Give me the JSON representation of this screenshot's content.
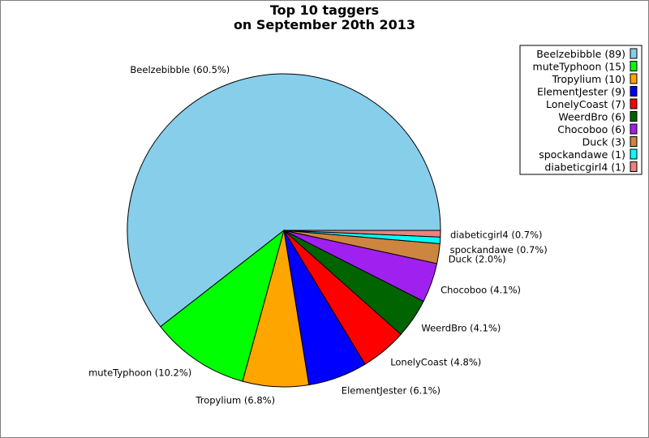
{
  "chart_data": {
    "type": "pie",
    "title": "Top 10 taggers",
    "subtitle": "on September 20th 2013",
    "slices": [
      {
        "name": "Beelzebibble",
        "count": 89,
        "percent": 60.5,
        "color": "#87ceeb",
        "label": "Beelzebibble (60.5%)",
        "legend": "Beelzebibble (89)"
      },
      {
        "name": "muteTyphoon",
        "count": 15,
        "percent": 10.2,
        "color": "#00ff00",
        "label": "muteTyphoon (10.2%)",
        "legend": "muteTyphoon (15)"
      },
      {
        "name": "Tropylium",
        "count": 10,
        "percent": 6.8,
        "color": "#ffa500",
        "label": "Tropylium (6.8%)",
        "legend": "Tropylium (10)"
      },
      {
        "name": "ElementJester",
        "count": 9,
        "percent": 6.1,
        "color": "#0000ff",
        "label": "ElementJester (6.1%)",
        "legend": "ElementJester (9)"
      },
      {
        "name": "LonelyCoast",
        "count": 7,
        "percent": 4.8,
        "color": "#ff0000",
        "label": "LonelyCoast (4.8%)",
        "legend": "LonelyCoast (7)"
      },
      {
        "name": "WeerdBro",
        "count": 6,
        "percent": 4.1,
        "color": "#006400",
        "label": "WeerdBro (4.1%)",
        "legend": "WeerdBro (6)"
      },
      {
        "name": "Chocoboo",
        "count": 6,
        "percent": 4.1,
        "color": "#a020f0",
        "label": "Chocoboo (4.1%)",
        "legend": "Chocoboo (6)"
      },
      {
        "name": "Duck",
        "count": 3,
        "percent": 2.0,
        "color": "#cd853f",
        "label": "Duck (2.0%)",
        "legend": "Duck (3)"
      },
      {
        "name": "spockandawe",
        "count": 1,
        "percent": 0.7,
        "color": "#00ffff",
        "label": "spockandawe (0.7%)",
        "legend": "spockandawe (1)"
      },
      {
        "name": "diabeticgirl4",
        "count": 1,
        "percent": 0.7,
        "color": "#f08080",
        "label": "diabeticgirl4 (0.7%)",
        "legend": "diabeticgirl4 (1)"
      }
    ],
    "legend_position": "top-right"
  }
}
